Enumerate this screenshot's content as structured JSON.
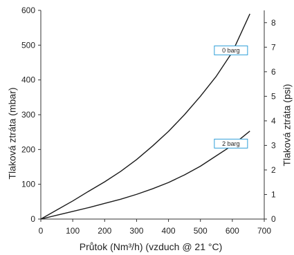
{
  "chart_data": {
    "type": "line",
    "title": "",
    "xlabel": "Průtok (Nm³/h) (vzduch @ 21 °C)",
    "ylabel": "Tlaková ztráta (mbar)",
    "y2label": "Tlaková ztráta (psi)",
    "xlim": [
      0,
      700
    ],
    "ylim": [
      0,
      600
    ],
    "y2lim": [
      0,
      8.5
    ],
    "x_ticks": [
      0,
      100,
      200,
      300,
      400,
      500,
      600,
      700
    ],
    "y_ticks": [
      0,
      100,
      200,
      300,
      400,
      500,
      600
    ],
    "y2_ticks": [
      0,
      1,
      2,
      3,
      4,
      5,
      6,
      7,
      8
    ],
    "grid": false,
    "legend": "none",
    "line_color": "#1a1a1a",
    "label_border_color": "#2e9fd8",
    "series": [
      {
        "name": "0 barg",
        "points": [
          [
            0,
            0
          ],
          [
            50,
            26
          ],
          [
            100,
            52
          ],
          [
            150,
            80
          ],
          [
            200,
            107
          ],
          [
            250,
            137
          ],
          [
            300,
            171
          ],
          [
            350,
            210
          ],
          [
            400,
            252
          ],
          [
            450,
            300
          ],
          [
            500,
            353
          ],
          [
            550,
            411
          ],
          [
            600,
            480
          ],
          [
            655,
            590
          ]
        ]
      },
      {
        "name": "2 barg",
        "points": [
          [
            0,
            0
          ],
          [
            50,
            11
          ],
          [
            100,
            22
          ],
          [
            150,
            33
          ],
          [
            200,
            45
          ],
          [
            250,
            57
          ],
          [
            300,
            71
          ],
          [
            350,
            87
          ],
          [
            400,
            105
          ],
          [
            450,
            127
          ],
          [
            500,
            152
          ],
          [
            550,
            182
          ],
          [
            600,
            212
          ],
          [
            655,
            253
          ]
        ]
      }
    ]
  }
}
